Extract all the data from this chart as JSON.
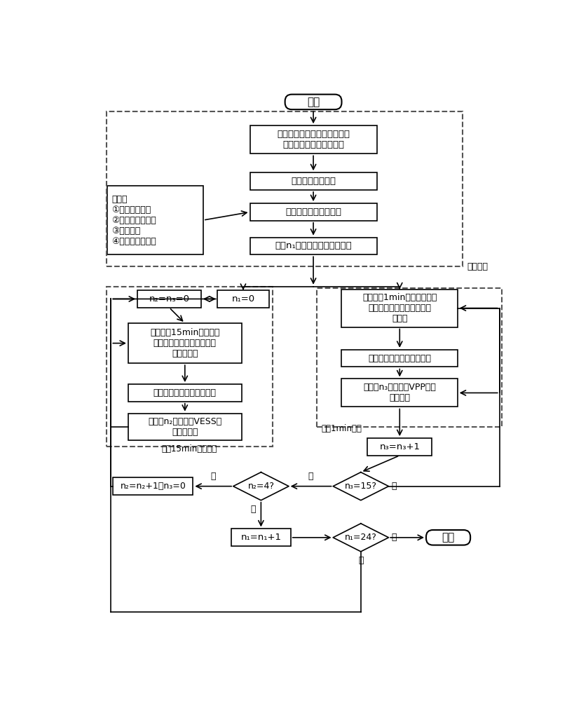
{
  "title": "开始",
  "end_label": "结束",
  "box1": "输入负荷、分布式电源、环境\n和室内热源日前预测数据",
  "box2": "输入分时电价信息",
  "box3": "目标：日运行成本最小",
  "box4": "制定n₁个时段的日前调度计划",
  "label_riqian": "日前调度",
  "constraint_title": "约束：",
  "constraint_lines": [
    "①功率平衡约束",
    "②楼宇热平衡约束",
    "③设备约束",
    "④温度舒适度约束"
  ],
  "box_n1_0": "n₁=0",
  "box_n2n3_0": "n₂=n₃=0",
  "box_update_15min": "更新日内15min间隔的负\n荷、分布式电源、环境和室\n内热源数据",
  "box_obj_15min": "目标：联络线功率偏差最小",
  "box_plan_vess": "制定第n₂个时段的VESS日\n内调度计划",
  "label_15min": "日内15min时间调度",
  "box_update_1min": "更新日内1min间隔的负荷、\n分布式电源、环境和室内热\n源数据",
  "box_obj_1min": "目标：联络线功率偏差最小",
  "box_plan_vpp": "制定第n₃个时段的VPP日内\n调度计划",
  "label_1min": "日内1min调度",
  "box_n3_inc": "n₃=n₃+1",
  "diamond_n3": "n₃=15?",
  "diamond_n2": "n₂=4?",
  "box_n2_inc": "n₂=n₂+1；n₃=0",
  "box_n1_inc": "n₁=n₁+1",
  "diamond_n1": "n₁=24?",
  "yes": "是",
  "no": "否",
  "bg_color": "#ffffff",
  "box_fill": "#ffffff",
  "box_edge": "#000000",
  "arrow_color": "#000000",
  "dashed_edge": "#555555"
}
